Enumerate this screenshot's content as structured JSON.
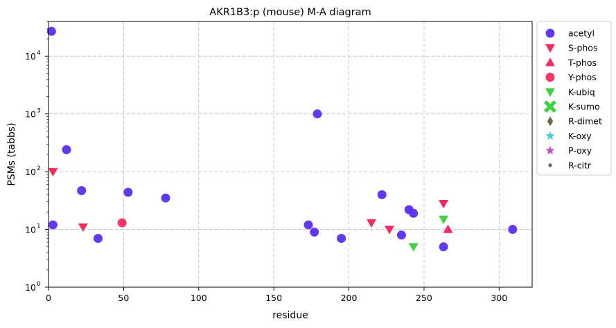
{
  "chart_data": {
    "type": "scatter",
    "title": "AKR1B3:p (mouse) M-A diagram",
    "xlabel": "residue",
    "ylabel": "PSMs (tabbs)",
    "xlim": [
      0,
      322
    ],
    "ylim": [
      1,
      40000
    ],
    "yscale": "log",
    "grid": true,
    "legend_position": "outside-right",
    "x_ticks": [
      "0",
      "50",
      "100",
      "150",
      "200",
      "250",
      "300"
    ],
    "x_tick_values": [
      0,
      50,
      100,
      150,
      200,
      250,
      300
    ],
    "y_tick_values": [
      1,
      10,
      100,
      1000,
      10000
    ],
    "y_tick_exponents": [
      "0",
      "1",
      "2",
      "3",
      "4"
    ],
    "y_tick_base": "10",
    "series": [
      {
        "name": "acetyl",
        "marker": "circle",
        "color": "#5b2df0",
        "points": [
          [
            2,
            27000
          ],
          [
            3,
            12
          ],
          [
            12,
            240
          ],
          [
            22,
            47
          ],
          [
            33,
            7
          ],
          [
            53,
            44
          ],
          [
            78,
            35
          ],
          [
            173,
            12
          ],
          [
            177,
            9
          ],
          [
            179,
            1000
          ],
          [
            195,
            7
          ],
          [
            222,
            40
          ],
          [
            235,
            8
          ],
          [
            240,
            22
          ],
          [
            243,
            19
          ],
          [
            263,
            5
          ],
          [
            309,
            10
          ]
        ]
      },
      {
        "name": "S-phos",
        "marker": "triangle-down",
        "color": "#f72a5e",
        "points": [
          [
            3,
            100
          ],
          [
            23,
            11
          ],
          [
            215,
            13
          ],
          [
            227,
            10
          ],
          [
            263,
            28
          ]
        ]
      },
      {
        "name": "T-phos",
        "marker": "triangle-up",
        "color": "#f72a5e",
        "points": [
          [
            266,
            10
          ]
        ]
      },
      {
        "name": "Y-phos",
        "marker": "circle",
        "color": "#f72a5e",
        "points": [
          [
            49,
            13
          ]
        ]
      },
      {
        "name": "K-ubiq",
        "marker": "triangle-down",
        "color": "#3fd23f",
        "points": [
          [
            243,
            5
          ],
          [
            263,
            15
          ]
        ]
      },
      {
        "name": "K-sumo",
        "marker": "x",
        "color": "#3fd23f",
        "points": []
      },
      {
        "name": "R-dimet",
        "marker": "diamond",
        "color": "#6b6b45",
        "points": []
      },
      {
        "name": "K-oxy",
        "marker": "star",
        "color": "#3fcfcf",
        "points": []
      },
      {
        "name": "P-oxy",
        "marker": "star",
        "color": "#c94fc9",
        "points": []
      },
      {
        "name": "R-citr",
        "marker": "dot",
        "color": "#666666",
        "points": []
      }
    ]
  }
}
